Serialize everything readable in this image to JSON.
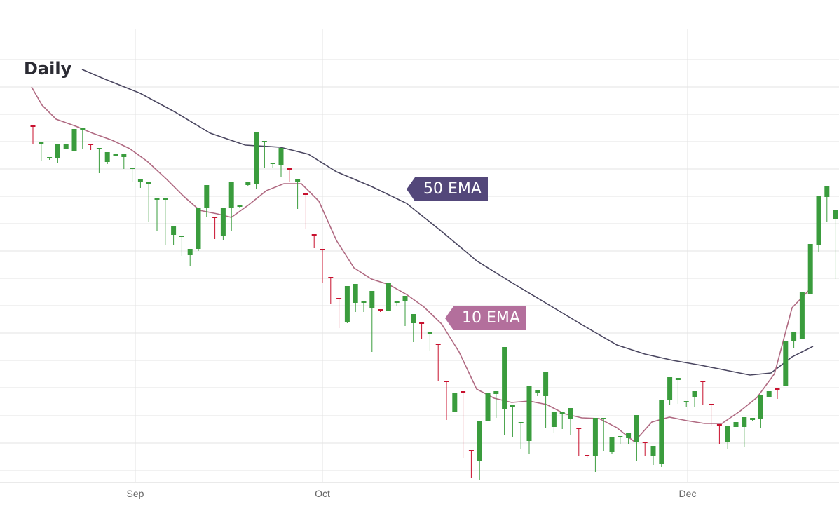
{
  "chart_data": {
    "type": "candlestick",
    "title": "Daily",
    "x_tick_labels": [
      "Sep",
      "Oct",
      "Dec"
    ],
    "grid": true,
    "legend": "none",
    "colors": {
      "up": "#3a9c3d",
      "down": "#c8102e",
      "ema10": "#b06a82",
      "ema50": "#4a4660",
      "grid": "#e3e3e3"
    },
    "annotations": [
      {
        "label": "50 EMA",
        "color": "#53477a"
      },
      {
        "label": "10 EMA",
        "color": "#b36f9c"
      }
    ],
    "candles": [
      [
        178,
        181,
        200,
        206
      ],
      [
        205,
        203,
        226,
        229
      ],
      [
        225,
        224,
        228,
        228
      ],
      [
        226,
        205,
        229,
        233
      ],
      [
        213,
        206,
        213,
        213
      ],
      [
        216,
        184,
        216,
        216
      ],
      [
        186,
        182,
        207,
        212
      ],
      [
        205,
        205,
        212,
        214
      ],
      [
        212,
        211,
        232,
        247
      ],
      [
        231,
        217,
        234,
        234
      ],
      [
        221,
        220,
        223,
        223
      ],
      [
        224,
        220,
        237,
        241
      ],
      [
        240,
        239,
        257,
        260
      ],
      [
        259,
        255,
        262,
        268
      ],
      [
        263,
        260,
        314,
        316
      ],
      [
        285,
        283,
        314,
        329
      ],
      [
        285,
        283,
        333,
        349
      ],
      [
        335,
        323,
        338,
        350
      ],
      [
        338,
        336,
        361,
        365
      ],
      [
        364,
        355,
        356,
        380
      ],
      [
        355,
        297,
        357,
        358
      ],
      [
        297,
        264,
        307,
        309
      ],
      [
        309,
        309,
        336,
        341
      ],
      [
        336,
        296,
        336,
        342
      ],
      [
        296,
        260,
        298,
        330
      ],
      [
        295,
        293,
        295,
        297
      ],
      [
        264,
        260,
        264,
        266
      ],
      [
        263,
        188,
        263,
        269
      ],
      [
        202,
        201,
        232,
        239
      ],
      [
        233,
        232,
        240,
        240
      ],
      [
        236,
        211,
        242,
        252
      ],
      [
        240,
        240,
        258,
        260
      ],
      [
        259,
        256,
        276,
        298
      ],
      [
        276,
        276,
        317,
        327
      ],
      [
        334,
        334,
        354,
        354
      ],
      [
        355,
        355,
        394,
        404
      ],
      [
        395,
        395,
        424,
        433
      ],
      [
        425,
        425,
        460,
        468
      ],
      [
        459,
        408,
        459,
        461
      ],
      [
        432,
        405,
        432,
        445
      ],
      [
        431,
        430,
        440,
        445
      ],
      [
        439,
        415,
        444,
        502
      ],
      [
        441,
        441,
        445,
        445
      ],
      [
        443,
        403,
        437,
        437
      ],
      [
        432,
        430,
        432,
        436
      ],
      [
        430,
        422,
        465,
        465
      ],
      [
        461,
        448,
        463,
        488
      ],
      [
        460,
        460,
        476,
        483
      ],
      [
        476,
        474,
        489,
        500
      ],
      [
        490,
        490,
        543,
        543
      ],
      [
        543,
        543,
        588,
        599
      ],
      [
        588,
        560,
        561,
        588
      ],
      [
        558,
        558,
        643,
        653
      ],
      [
        642,
        642,
        658,
        682
      ],
      [
        658,
        600,
        658,
        685
      ],
      [
        600,
        560,
        600,
        600
      ],
      [
        562,
        558,
        583,
        596
      ],
      [
        583,
        495,
        564,
        620
      ],
      [
        580,
        577,
        601,
        624
      ],
      [
        604,
        602,
        628,
        640
      ],
      [
        629,
        550,
        629,
        648
      ],
      [
        560,
        557,
        561,
        565
      ],
      [
        565,
        530,
        610,
        611
      ],
      [
        609,
        588,
        609,
        618
      ],
      [
        590,
        588,
        607,
        612
      ],
      [
        598,
        582,
        610,
        620
      ],
      [
        610,
        610,
        649,
        650
      ],
      [
        649,
        650,
        651,
        653
      ],
      [
        650,
        596,
        650,
        673
      ],
      [
        598,
        596,
        644,
        644
      ],
      [
        645,
        623,
        645,
        648
      ],
      [
        624,
        622,
        632,
        634
      ],
      [
        625,
        618,
        630,
        634
      ],
      [
        630,
        592,
        632,
        658
      ],
      [
        630,
        630,
        650,
        650
      ],
      [
        650,
        636,
        662,
        663
      ],
      [
        662,
        570,
        662,
        666
      ],
      [
        570,
        538,
        574,
        577
      ],
      [
        542,
        539,
        569,
        576
      ],
      [
        574,
        572,
        578,
        580
      ],
      [
        567,
        558,
        580,
        581
      ],
      [
        543,
        543,
        577,
        577
      ],
      [
        576,
        576,
        605,
        608
      ],
      [
        605,
        605,
        629,
        633
      ],
      [
        630,
        608,
        630,
        640
      ],
      [
        609,
        602,
        609,
        609
      ],
      [
        609,
        595,
        609,
        638
      ],
      [
        599,
        596,
        599,
        600
      ],
      [
        598,
        563,
        600,
        610
      ],
      [
        566,
        558,
        567,
        567
      ],
      [
        554,
        555,
        563,
        569
      ],
      [
        550,
        486,
        551,
        550
      ],
      [
        487,
        474,
        487,
        497
      ],
      [
        483,
        416,
        483,
        483
      ],
      [
        419,
        348,
        419,
        419
      ],
      [
        349,
        280,
        349,
        360
      ],
      [
        281,
        266,
        311,
        316
      ],
      [
        312,
        300,
        372,
        398
      ]
    ],
    "ema10": [
      [
        45,
        124
      ],
      [
        60,
        150
      ],
      [
        80,
        170
      ],
      [
        108,
        180
      ],
      [
        132,
        190
      ],
      [
        160,
        200
      ],
      [
        185,
        212
      ],
      [
        210,
        230
      ],
      [
        238,
        256
      ],
      [
        262,
        280
      ],
      [
        285,
        300
      ],
      [
        310,
        305
      ],
      [
        330,
        310
      ],
      [
        355,
        292
      ],
      [
        380,
        272
      ],
      [
        405,
        262
      ],
      [
        430,
        262
      ],
      [
        455,
        287
      ],
      [
        480,
        343
      ],
      [
        505,
        382
      ],
      [
        530,
        398
      ],
      [
        555,
        406
      ],
      [
        580,
        420
      ],
      [
        605,
        438
      ],
      [
        630,
        462
      ],
      [
        655,
        502
      ],
      [
        680,
        555
      ],
      [
        705,
        568
      ],
      [
        730,
        574
      ],
      [
        755,
        572
      ],
      [
        780,
        577
      ],
      [
        805,
        590
      ],
      [
        830,
        596
      ],
      [
        855,
        597
      ],
      [
        880,
        610
      ],
      [
        905,
        630
      ],
      [
        930,
        602
      ],
      [
        955,
        595
      ],
      [
        980,
        600
      ],
      [
        1005,
        604
      ],
      [
        1030,
        604
      ],
      [
        1055,
        587
      ],
      [
        1080,
        567
      ],
      [
        1105,
        533
      ],
      [
        1130,
        439
      ],
      [
        1158,
        410
      ]
    ],
    "ema50": [
      [
        117,
        99
      ],
      [
        150,
        113
      ],
      [
        200,
        133
      ],
      [
        250,
        160
      ],
      [
        300,
        190
      ],
      [
        350,
        207
      ],
      [
        400,
        210
      ],
      [
        440,
        220
      ],
      [
        480,
        245
      ],
      [
        530,
        266
      ],
      [
        580,
        290
      ],
      [
        630,
        330
      ],
      [
        680,
        372
      ],
      [
        730,
        403
      ],
      [
        780,
        433
      ],
      [
        830,
        463
      ],
      [
        880,
        492
      ],
      [
        920,
        505
      ],
      [
        960,
        514
      ],
      [
        1000,
        521
      ],
      [
        1040,
        529
      ],
      [
        1070,
        535
      ],
      [
        1100,
        532
      ],
      [
        1130,
        509
      ],
      [
        1160,
        494
      ]
    ]
  }
}
